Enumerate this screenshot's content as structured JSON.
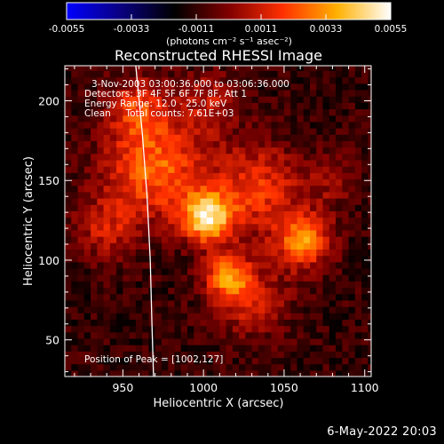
{
  "chart_data": {
    "type": "heatmap",
    "title": "Reconstructed RHESSI Image",
    "xlabel": "Heliocentric X (arcsec)",
    "ylabel": "Heliocentric Y (arcsec)",
    "xlim": [
      914,
      1104
    ],
    "ylim": [
      27,
      222
    ],
    "x_ticks": [
      950,
      1000,
      1050,
      1100
    ],
    "y_ticks": [
      50,
      100,
      150,
      200
    ],
    "colorbar": {
      "range": [
        -0.0055,
        0.0055
      ],
      "ticks": [
        "-0.0055",
        "-0.0033",
        "-0.0011",
        "0.0011",
        "0.0033",
        "0.0055"
      ],
      "unit_label": "(photons cm⁻² s⁻¹ asec⁻²)",
      "colors": [
        "#0000ff",
        "#0a0080",
        "#000000",
        "#800000",
        "#ff3000",
        "#ffb000",
        "#ffffff"
      ]
    },
    "annotations": [
      "3-Nov-2003 03:00:36.000 to 03:06:36.000",
      "Detectors: 3F 4F 5F 6F 7F 8F, Att 1",
      "Energy Range: 12.0 - 25.0 keV",
      "Clean     Total counts: 7.61E+03"
    ],
    "peak_label": "Position of Peak = [1002,127]",
    "peak_position": [
      1002,
      127
    ],
    "limb_curve": [
      [
        958,
        222
      ],
      [
        962,
        180
      ],
      [
        965,
        140
      ],
      [
        967,
        100
      ],
      [
        968,
        60
      ],
      [
        969,
        27
      ]
    ],
    "sources": [
      {
        "x": 1002,
        "y": 127,
        "sigma": 11,
        "amp": 0.0055
      },
      {
        "x": 970,
        "y": 158,
        "sigma": 22,
        "amp": 0.0036
      },
      {
        "x": 1033,
        "y": 145,
        "sigma": 20,
        "amp": 0.0028
      },
      {
        "x": 1062,
        "y": 112,
        "sigma": 12,
        "amp": 0.0042
      },
      {
        "x": 1015,
        "y": 90,
        "sigma": 10,
        "amp": 0.0038
      },
      {
        "x": 1030,
        "y": 75,
        "sigma": 16,
        "amp": 0.0022
      },
      {
        "x": 960,
        "y": 195,
        "sigma": 14,
        "amp": 0.0025
      },
      {
        "x": 1005,
        "y": 200,
        "sigma": 13,
        "amp": 0.0018
      },
      {
        "x": 940,
        "y": 120,
        "sigma": 14,
        "amp": 0.002
      },
      {
        "x": 1080,
        "y": 150,
        "sigma": 12,
        "amp": 0.0012
      }
    ],
    "background_level": -0.0011
  },
  "footer": {
    "timestamp": "6-May-2022 20:03"
  }
}
